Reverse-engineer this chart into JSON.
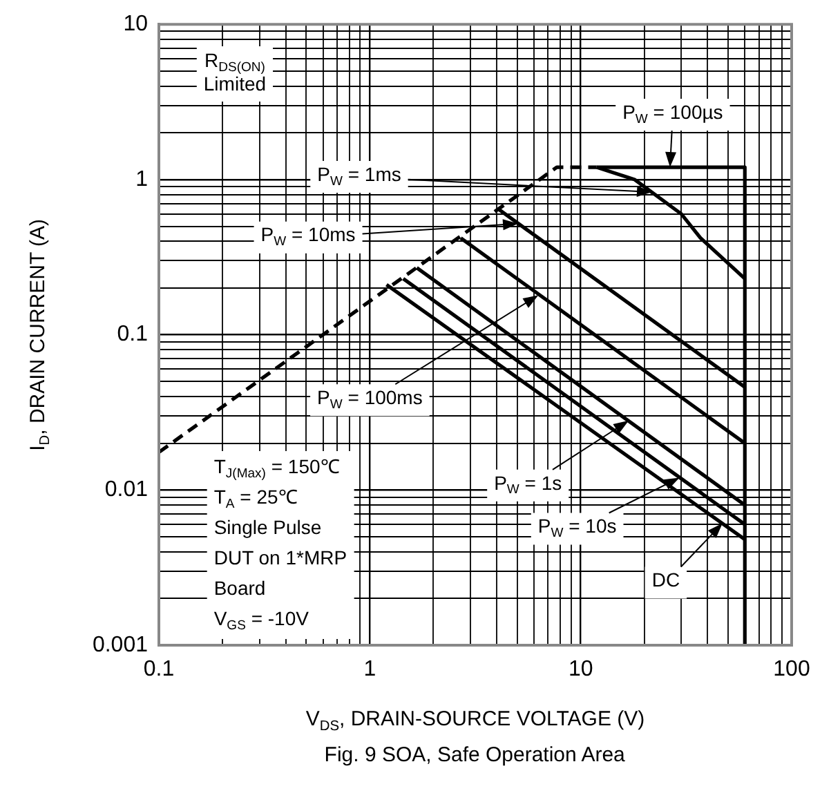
{
  "chart_data": {
    "type": "line",
    "xlabel": "V$_{DS}$, DRAIN-SOURCE VOLTAGE (V)",
    "ylabel": "I$_{D}$, DRAIN CURRENT (A)",
    "log": "xy",
    "grid": true,
    "marker": "none",
    "xlim": [
      0.1,
      100
    ],
    "ylim": [
      0.001,
      10
    ],
    "xticks": [
      0.1,
      {
        "value": 0.2,
        "label": null
      },
      {
        "value": 0.3,
        "label": null
      },
      {
        "value": 0.4,
        "label": null
      },
      {
        "value": 0.5,
        "label": null
      },
      {
        "value": 0.6,
        "label": null
      },
      {
        "value": 0.7,
        "label": null
      },
      {
        "value": 0.8,
        "label": null
      },
      {
        "value": 0.9,
        "label": null
      },
      1,
      {
        "value": 2,
        "label": null
      },
      {
        "value": 3,
        "label": null
      },
      {
        "value": 4,
        "label": null
      },
      {
        "value": 5,
        "label": null
      },
      {
        "value": 6,
        "label": null
      },
      {
        "value": 7,
        "label": null
      },
      {
        "value": 8,
        "label": null
      },
      {
        "value": 9,
        "label": null
      },
      10,
      {
        "value": 20,
        "label": null
      },
      {
        "value": 30,
        "label": null
      },
      {
        "value": 40,
        "label": null
      },
      {
        "value": 50,
        "label": null
      },
      {
        "value": 60,
        "label": null
      },
      {
        "value": 70,
        "label": null
      },
      {
        "value": 80,
        "label": null
      },
      {
        "value": 90,
        "label": null
      },
      100
    ],
    "yticks": [
      0.001,
      {
        "value": 0.002,
        "label": null
      },
      {
        "value": 0.003,
        "label": null
      },
      {
        "value": 0.004,
        "label": null
      },
      {
        "value": 0.005,
        "label": null
      },
      {
        "value": 0.006,
        "label": null
      },
      {
        "value": 0.007,
        "label": null
      },
      {
        "value": 0.008,
        "label": null
      },
      {
        "value": 0.009,
        "label": null
      },
      0.01,
      {
        "value": 0.02,
        "label": null
      },
      {
        "value": 0.03,
        "label": null
      },
      {
        "value": 0.04,
        "label": null
      },
      {
        "value": 0.05,
        "label": null
      },
      {
        "value": 0.06,
        "label": null
      },
      {
        "value": 0.07,
        "label": null
      },
      {
        "value": 0.08,
        "label": null
      },
      {
        "value": 0.09,
        "label": null
      },
      0.1,
      {
        "value": 0.2,
        "label": null
      },
      {
        "value": 0.3,
        "label": null
      },
      {
        "value": 0.4,
        "label": null
      },
      {
        "value": 0.5,
        "label": null
      },
      {
        "value": 0.6,
        "label": null
      },
      {
        "value": 0.7,
        "label": null
      },
      {
        "value": 0.8,
        "label": null
      },
      {
        "value": 0.9,
        "label": null
      },
      1,
      {
        "value": 2,
        "label": null
      },
      {
        "value": 3,
        "label": null
      },
      {
        "value": 4,
        "label": null
      },
      {
        "value": 5,
        "label": null
      },
      {
        "value": 6,
        "label": null
      },
      {
        "value": 7,
        "label": null
      },
      {
        "value": 8,
        "label": null
      },
      {
        "value": 9,
        "label": null
      },
      10
    ],
    "series": [
      {
        "color": "#000000",
        "line_style": "dashed",
        "x": [
          0.1,
          7.7,
          11.9
        ],
        "values": [
          0.0175,
          1.2,
          1.2
        ]
      },
      {
        "color": "#000000",
        "x": [
          11.9,
          60,
          60
        ],
        "values": [
          1.2,
          1.2,
          0.001
        ]
      },
      {
        "color": "#000000",
        "x": [
          11.9,
          18,
          30,
          37,
          60
        ],
        "values": [
          1.2,
          1.0,
          0.6,
          0.42,
          0.23
        ]
      },
      {
        "color": "#000000",
        "x": [
          4.1,
          60
        ],
        "values": [
          0.64,
          0.046
        ]
      },
      {
        "color": "#000000",
        "x": [
          2.7,
          60
        ],
        "values": [
          0.42,
          0.02
        ]
      },
      {
        "color": "#000000",
        "x": [
          1.67,
          60
        ],
        "values": [
          0.27,
          0.008
        ]
      },
      {
        "color": "#000000",
        "x": [
          1.44,
          60
        ],
        "values": [
          0.23,
          0.006
        ]
      },
      {
        "color": "#000000",
        "x": [
          1.2,
          60
        ],
        "values": [
          0.21,
          0.0048
        ]
      }
    ],
    "annotations": [
      "R$_{DS(ON)}$ Limited",
      {
        "text": "P$_{W}$ = 100µs",
        "x": 26.5,
        "y": 1.2
      },
      {
        "text": "P$_{W}$ = 1ms",
        "x": 21.8,
        "y": 0.83
      },
      {
        "text": "P$_{W}$ = 10ms",
        "x": 5.05,
        "y": 0.52
      },
      {
        "text": "P$_{W}$ = 100ms",
        "x": 6.3,
        "y": 0.18
      },
      {
        "text": "P$_{W}$ = 1s",
        "x": 16.9,
        "y": 0.028
      },
      {
        "text": "P$_{W}$ = 10s",
        "x": 29.4,
        "y": 0.012
      },
      {
        "text": "DC",
        "x": 47,
        "y": 0.0061
      },
      "T$_{J(Max)}$ = 150℃",
      "T$_{A}$ = 25℃",
      "Single Pulse",
      "DUT on 1*MRP",
      "Board",
      "V$_{GS}$ = -10V",
      "Fig. 9 SOA, Safe Operation Area"
    ]
  }
}
